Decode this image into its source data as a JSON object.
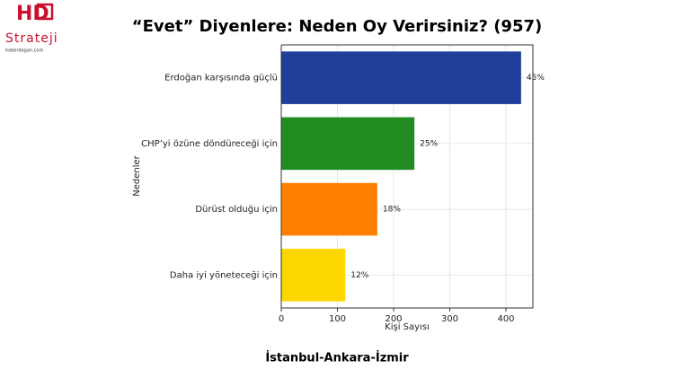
{
  "logo": {
    "mark": "HD",
    "name": "Strateji",
    "site": "haberdogan.com"
  },
  "chart_data": {
    "type": "bar",
    "orientation": "horizontal",
    "title": "“Evet” Diyenlere: Neden Oy Verirsiniz? (957)",
    "x_label": "Kişi Sayısı",
    "y_label": "Nedenler",
    "categories": [
      "Erdoğan karşısında güçlü",
      "CHP’yi özüne döndüreceği için",
      "Dürüst olduğu için",
      "Daha iyi yöneteceği için"
    ],
    "values": [
      427,
      237,
      171,
      114
    ],
    "colors": [
      "#1f3f99",
      "#228b22",
      "#ff7f00",
      "#ffd700"
    ],
    "bar_labels": [
      "45%",
      "25%",
      "18%",
      "12%"
    ],
    "xlim": [
      0,
      448
    ],
    "xticks": [
      0,
      100,
      200,
      300,
      400
    ],
    "grid": true
  },
  "footer": "İstanbul-Ankara-İzmir"
}
